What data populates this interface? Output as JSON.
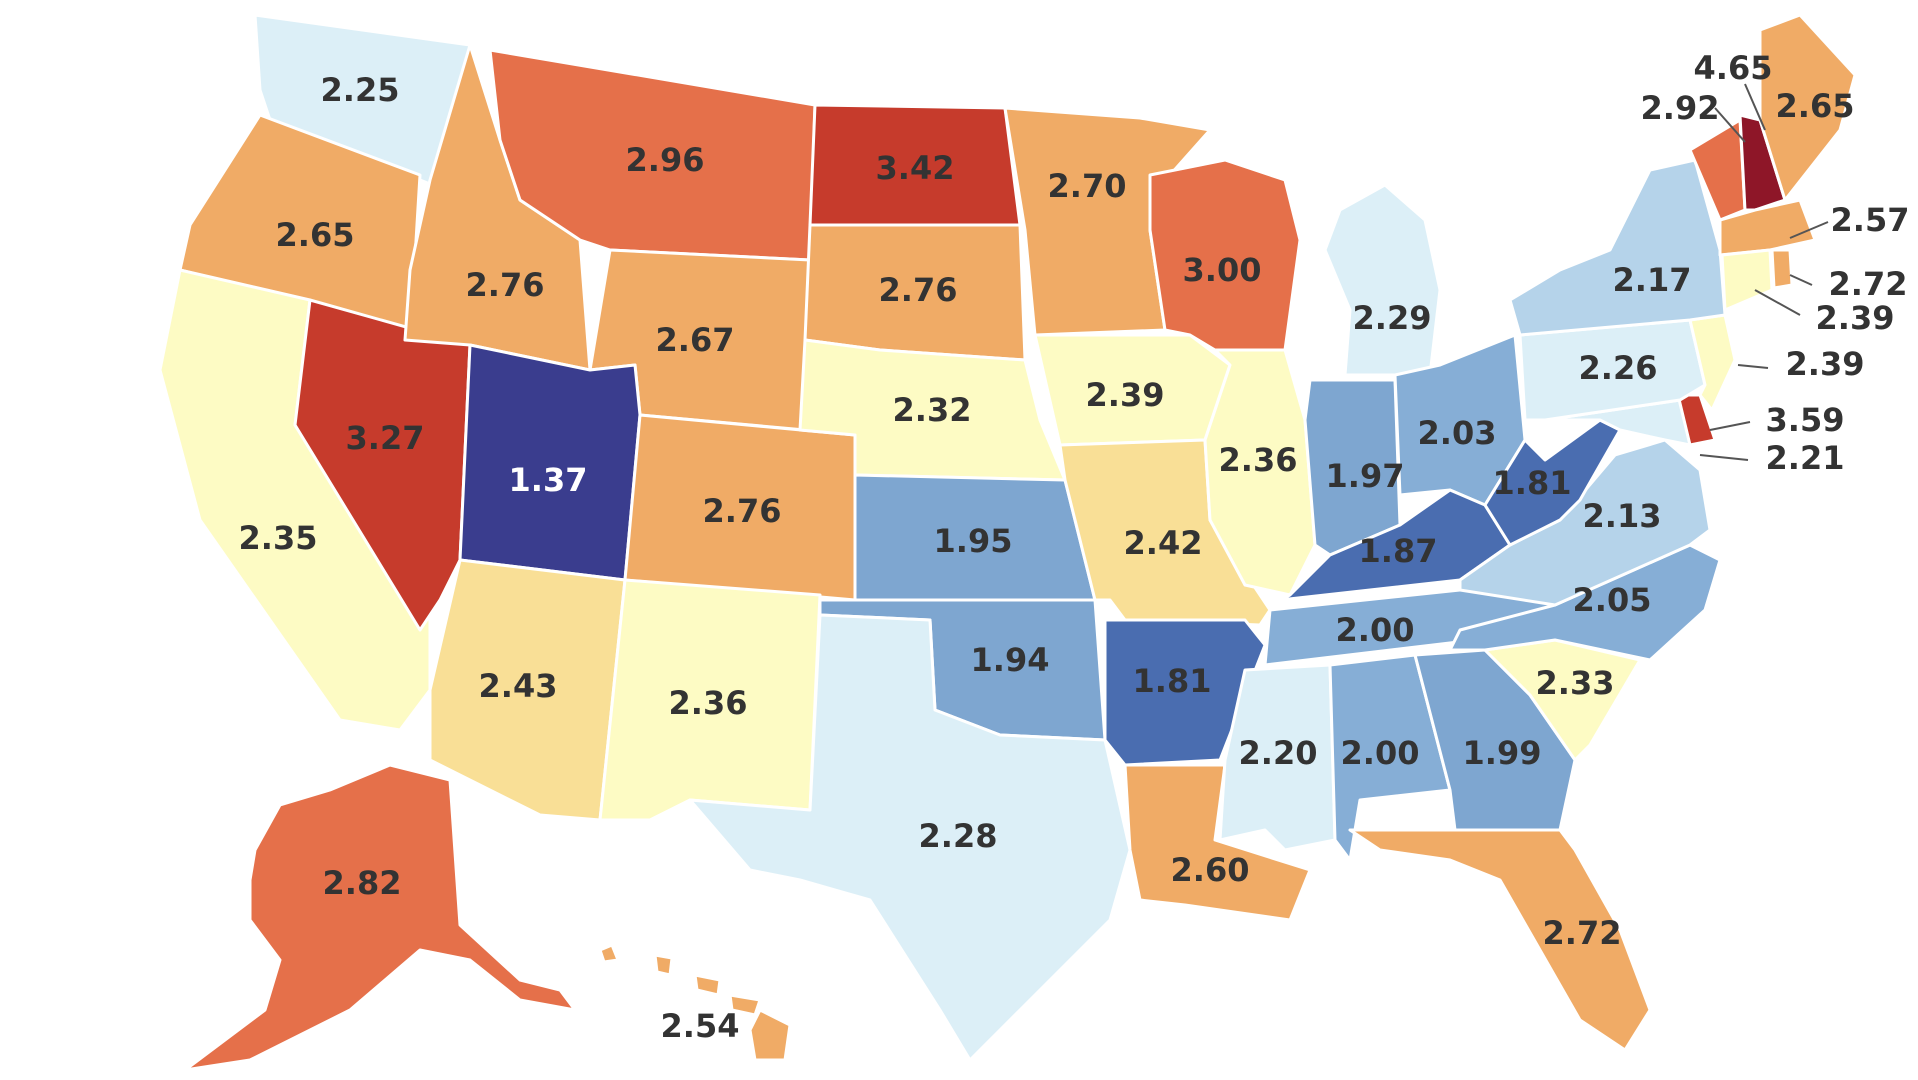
{
  "colors": {
    "v1_37": "#3a3d8e",
    "v1_8x": "#4a6db0",
    "v1_9x": "#7ea6d0",
    "v2_0x": "#86aed6",
    "v2_1x": "#b5d3ea",
    "v2_2x": "#dceff7",
    "v2_3x": "#fdfbc4",
    "v2_4x": "#f9df96",
    "v2_5to2_7": "#f0ab66",
    "v2_8to3_0": "#e5704a",
    "v3_2to3_6": "#c63b2c",
    "v4_65": "#8e1628"
  },
  "states": {
    "WA": "2.25",
    "OR": "2.65",
    "CA": "2.35",
    "NV": "3.27",
    "ID": "2.76",
    "MT": "2.96",
    "WY": "2.67",
    "UT": "1.37",
    "AZ": "2.43",
    "CO": "2.76",
    "NM": "2.36",
    "ND": "3.42",
    "SD": "2.76",
    "NE": "2.32",
    "KS": "1.95",
    "OK": "1.94",
    "TX": "2.28",
    "MN": "2.70",
    "IA": "2.39",
    "MO": "2.42",
    "AR": "1.81",
    "LA": "2.60",
    "WI": "3.00",
    "IL": "2.36",
    "MI": "2.29",
    "IN": "1.97",
    "OH": "2.03",
    "KY": "1.87",
    "TN": "2.00",
    "MS": "2.20",
    "AL": "2.00",
    "GA": "1.99",
    "FL": "2.72",
    "SC": "2.33",
    "NC": "2.05",
    "VA": "2.13",
    "WV": "1.81",
    "PA": "2.26",
    "NY": "2.17",
    "VT": "2.92",
    "NH": "4.65",
    "ME": "2.65",
    "MA": "2.57",
    "RI": "2.72",
    "CT": "2.39",
    "NJ": "2.39",
    "DE": "3.59",
    "MD": "2.21",
    "AK": "2.82",
    "HI": "2.54"
  }
}
